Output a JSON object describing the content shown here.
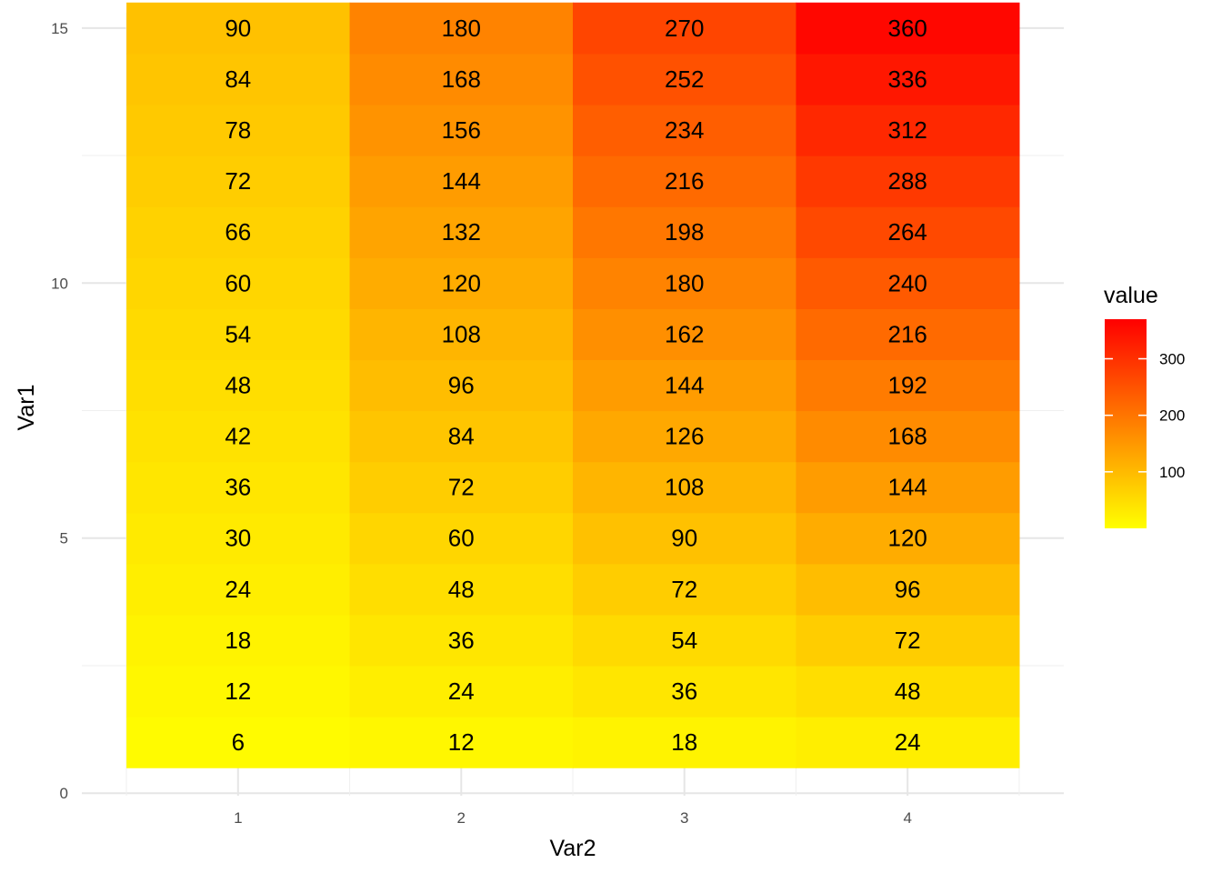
{
  "chart_data": {
    "type": "heatmap",
    "xlabel": "Var2",
    "ylabel": "Var1",
    "x": [
      1,
      2,
      3,
      4
    ],
    "y": [
      1,
      2,
      3,
      4,
      5,
      6,
      7,
      8,
      9,
      10,
      11,
      12,
      13,
      14,
      15
    ],
    "x_tick_labels": [
      "1",
      "2",
      "3",
      "4"
    ],
    "y_tick_labels": [
      "0",
      "5",
      "10",
      "15"
    ],
    "xlim": [
      0.3,
      4.7
    ],
    "ylim": [
      -0.05,
      15.3
    ],
    "values": [
      [
        6,
        12,
        18,
        24
      ],
      [
        12,
        24,
        36,
        48
      ],
      [
        18,
        36,
        54,
        72
      ],
      [
        24,
        48,
        72,
        96
      ],
      [
        30,
        60,
        90,
        120
      ],
      [
        36,
        72,
        108,
        144
      ],
      [
        42,
        84,
        126,
        168
      ],
      [
        48,
        96,
        144,
        192
      ],
      [
        54,
        108,
        162,
        216
      ],
      [
        60,
        120,
        180,
        240
      ],
      [
        66,
        132,
        198,
        264
      ],
      [
        72,
        144,
        216,
        288
      ],
      [
        78,
        156,
        234,
        312
      ],
      [
        84,
        168,
        252,
        336
      ],
      [
        90,
        180,
        270,
        360
      ]
    ],
    "color_scale": {
      "low": "#FFFF00",
      "high": "#FF0000",
      "min": 0,
      "max": 370
    },
    "legend": {
      "title": "value",
      "ticks": [
        "100",
        "200",
        "300"
      ],
      "tick_values": [
        100,
        200,
        300
      ],
      "placement": "right"
    },
    "grid": true
  }
}
